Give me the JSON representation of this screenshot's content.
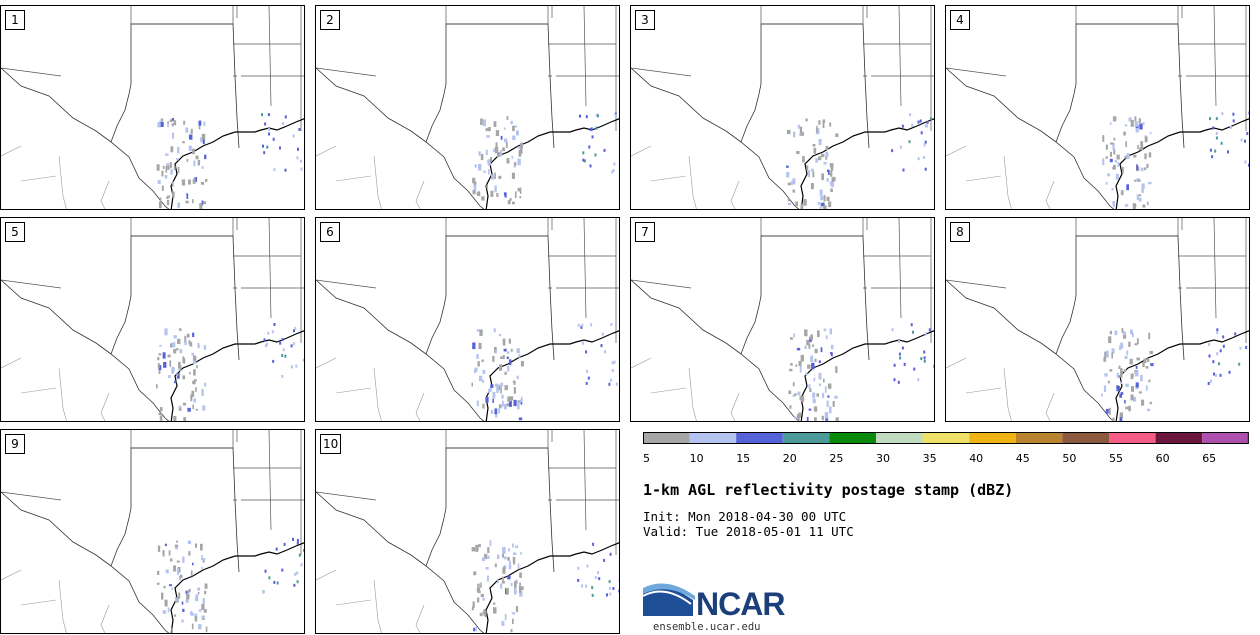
{
  "chart_data": {
    "type": "postage_stamp_map",
    "title": "1-km AGL reflectivity postage stamp (dBZ)",
    "init": "Init: Mon 2018-04-30 00 UTC",
    "valid": "Valid: Tue 2018-05-01 11 UTC",
    "members": [
      "1",
      "2",
      "3",
      "4",
      "5",
      "6",
      "7",
      "8",
      "9",
      "10"
    ],
    "region": "Texas and southern Great Plains",
    "colorbar": {
      "unit": "dBZ",
      "tick_labels": [
        "5",
        "10",
        "15",
        "20",
        "25",
        "30",
        "35",
        "40",
        "45",
        "50",
        "55",
        "60",
        "65"
      ],
      "bins": [
        {
          "min": 5,
          "max": 10,
          "color": "#a6a6a6"
        },
        {
          "min": 10,
          "max": 15,
          "color": "#b4c3ef"
        },
        {
          "min": 15,
          "max": 20,
          "color": "#5662d8"
        },
        {
          "min": 20,
          "max": 25,
          "color": "#4c9a9a"
        },
        {
          "min": 25,
          "max": 30,
          "color": "#0a8a0a"
        },
        {
          "min": 30,
          "max": 35,
          "color": "#bfdcbf"
        },
        {
          "min": 35,
          "max": 40,
          "color": "#efe067"
        },
        {
          "min": 40,
          "max": 45,
          "color": "#efb316"
        },
        {
          "min": 45,
          "max": 50,
          "color": "#ba8330"
        },
        {
          "min": 50,
          "max": 55,
          "color": "#8b5a3e"
        },
        {
          "min": 55,
          "max": 60,
          "color": "#f55d86"
        },
        {
          "min": 60,
          "max": 65,
          "color": "#6b163c"
        },
        {
          "min": 65,
          "max": 70,
          "color": "#ad50ad"
        }
      ]
    }
  },
  "footer": {
    "logo": "NCAR",
    "website": "ensemble.ucar.edu"
  }
}
